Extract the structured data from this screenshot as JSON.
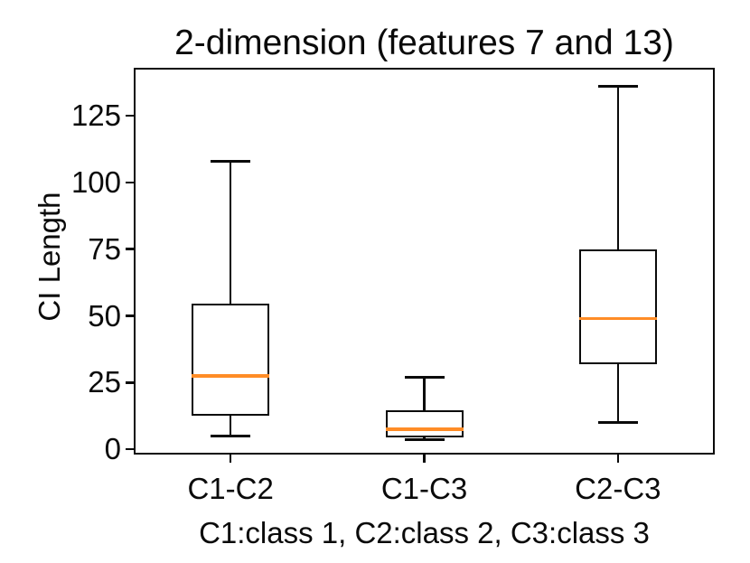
{
  "chart_data": {
    "type": "box",
    "title": "2-dimension (features 7 and 13)",
    "ylabel": "CI Length",
    "xlabel": "C1:class 1, C2:class 2, C3:class 3",
    "categories": [
      "C1-C2",
      "C1-C3",
      "C2-C3"
    ],
    "yticks": [
      0,
      25,
      50,
      75,
      100,
      125
    ],
    "ylim": [
      -2,
      143
    ],
    "grid": false,
    "legend": "none",
    "series": [
      {
        "label": "C1-C2",
        "whisker_low": 5,
        "q1": 12.5,
        "median": 27.5,
        "q3": 54.5,
        "whisker_high": 108,
        "outliers": []
      },
      {
        "label": "C1-C3",
        "whisker_low": 3.5,
        "q1": 4.5,
        "median": 7.5,
        "q3": 14.5,
        "whisker_high": 27,
        "outliers": []
      },
      {
        "label": "C2-C3",
        "whisker_low": 10,
        "q1": 32,
        "median": 49,
        "q3": 75,
        "whisker_high": 136,
        "outliers": []
      }
    ],
    "colors": {
      "median": "#ff8c26",
      "line": "#0a0a0a",
      "background": "#ffffff"
    }
  }
}
